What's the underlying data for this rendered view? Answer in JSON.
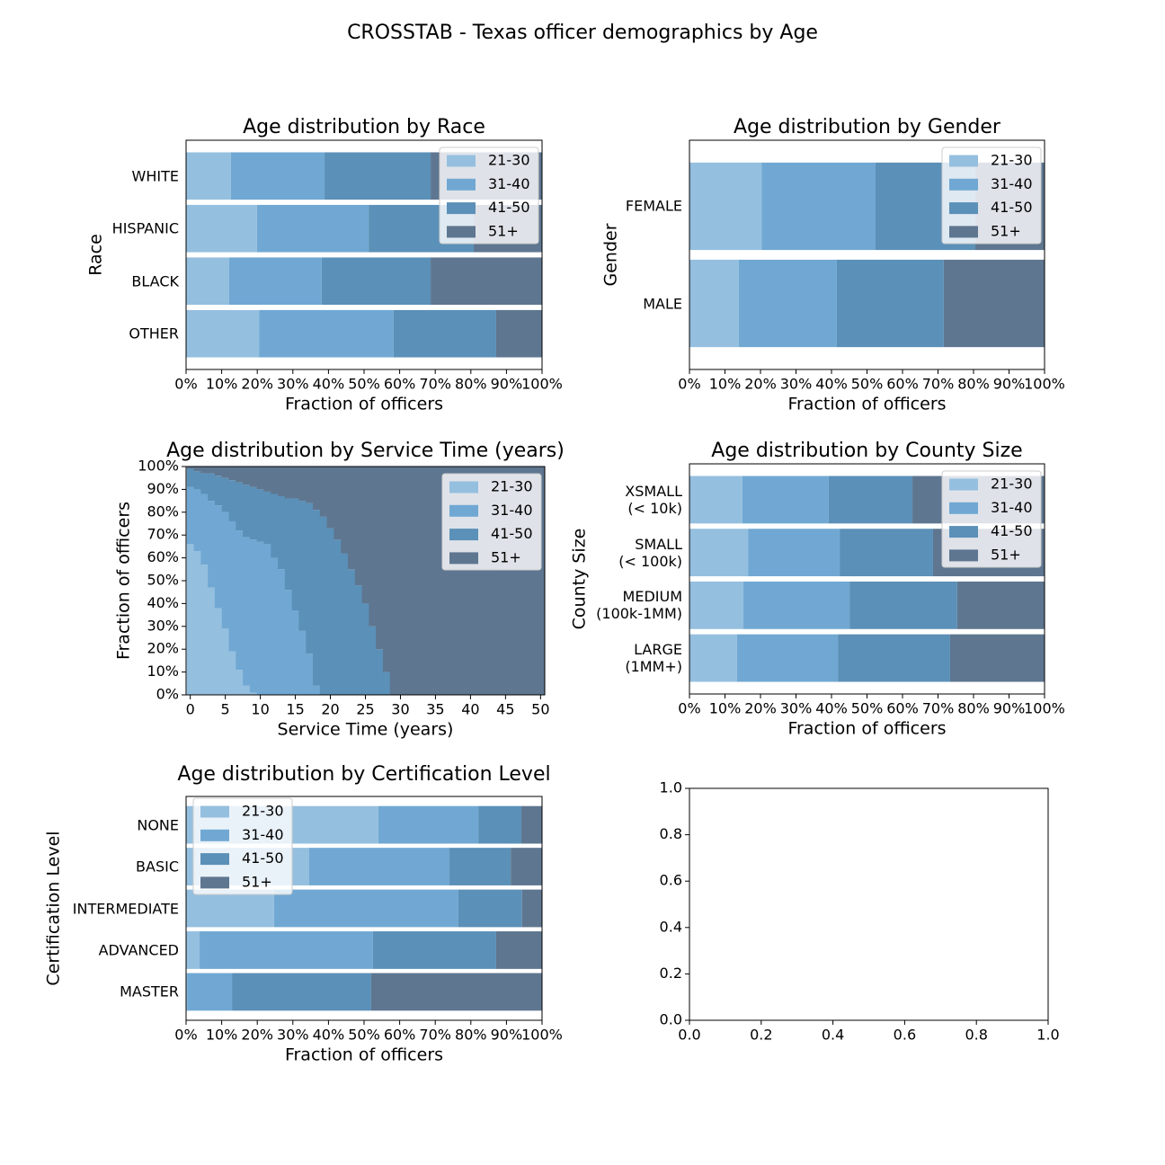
{
  "title": "CROSSTAB - Texas officer demographics by Age",
  "chart_data": [
    {
      "type": "bar",
      "orientation": "horizontal",
      "stacked": true,
      "title": "Age distribution by Race",
      "xlabel": "Fraction of officers",
      "ylabel": "Race",
      "categories": [
        "WHITE",
        "HISPANIC",
        "BLACK",
        "OTHER"
      ],
      "series": [
        {
          "name": "21-30",
          "color": "#95bfdf",
          "values": [
            12.6,
            19.9,
            12.1,
            20.5
          ]
        },
        {
          "name": "31-40",
          "color": "#70a8d3",
          "values": [
            26.3,
            31.4,
            26.0,
            37.8
          ]
        },
        {
          "name": "41-50",
          "color": "#5b90b8",
          "values": [
            29.8,
            29.5,
            30.6,
            28.8
          ]
        },
        {
          "name": "51+",
          "color": "#5e7690",
          "values": [
            31.3,
            19.2,
            31.3,
            12.9
          ]
        }
      ],
      "xlim": [
        0,
        100
      ],
      "xticks": [
        {
          "value": 0,
          "label": "0%"
        },
        {
          "value": 10,
          "label": "10%"
        },
        {
          "value": 20,
          "label": "20%"
        },
        {
          "value": 30,
          "label": "30%"
        },
        {
          "value": 40,
          "label": "40%"
        },
        {
          "value": 50,
          "label": "50%"
        },
        {
          "value": 60,
          "label": "60%"
        },
        {
          "value": 70,
          "label": "70%"
        },
        {
          "value": 80,
          "label": "80%"
        },
        {
          "value": 90,
          "label": "90%"
        },
        {
          "value": 100,
          "label": "100%"
        }
      ],
      "legend": "upper right"
    },
    {
      "type": "bar",
      "orientation": "horizontal",
      "stacked": true,
      "title": "Age distribution by Gender",
      "xlabel": "Fraction of officers",
      "ylabel": "Gender",
      "categories": [
        "FEMALE",
        "MALE"
      ],
      "series": [
        {
          "name": "21-30",
          "color": "#95bfdf",
          "values": [
            20.3,
            13.9
          ]
        },
        {
          "name": "31-40",
          "color": "#70a8d3",
          "values": [
            32.1,
            27.6
          ]
        },
        {
          "name": "41-50",
          "color": "#5b90b8",
          "values": [
            28.1,
            30.1
          ]
        },
        {
          "name": "51+",
          "color": "#5e7690",
          "values": [
            19.5,
            28.4
          ]
        }
      ],
      "xlim": [
        0,
        100
      ],
      "xticks": [
        {
          "value": 0,
          "label": "0%"
        },
        {
          "value": 10,
          "label": "10%"
        },
        {
          "value": 20,
          "label": "20%"
        },
        {
          "value": 30,
          "label": "30%"
        },
        {
          "value": 40,
          "label": "40%"
        },
        {
          "value": 50,
          "label": "50%"
        },
        {
          "value": 60,
          "label": "60%"
        },
        {
          "value": 70,
          "label": "70%"
        },
        {
          "value": 80,
          "label": "80%"
        },
        {
          "value": 90,
          "label": "90%"
        },
        {
          "value": 100,
          "label": "100%"
        }
      ],
      "legend": "upper right"
    },
    {
      "type": "area",
      "stacked": true,
      "title": "Age distribution by Service Time (years)",
      "xlabel": "Service Time (years)",
      "ylabel": "Fraction of officers",
      "x": [
        0,
        1,
        2,
        3,
        4,
        5,
        6,
        7,
        8,
        9,
        10,
        11,
        12,
        13,
        14,
        15,
        16,
        17,
        18,
        19,
        20,
        21,
        22,
        23,
        24,
        25,
        26,
        27,
        28,
        29,
        30,
        31,
        32,
        33,
        34,
        35,
        36,
        37,
        38,
        39,
        40,
        41,
        42,
        43,
        44,
        45,
        46,
        47,
        48,
        49,
        50
      ],
      "series": [
        {
          "name": "21-30",
          "color": "#95bfdf",
          "values": [
            66,
            63,
            57,
            47,
            38,
            29,
            19,
            11,
            4,
            1,
            0,
            0,
            0,
            0,
            0,
            0,
            0,
            0,
            0,
            0,
            0,
            0,
            0,
            0,
            0,
            0,
            0,
            0,
            0,
            0,
            0,
            0,
            0,
            0,
            0,
            0,
            0,
            0,
            0,
            0,
            0,
            0,
            0,
            0,
            0,
            0,
            0,
            0,
            0,
            0,
            0
          ]
        },
        {
          "name": "31-40",
          "color": "#70a8d3",
          "values": [
            25,
            27,
            31,
            38,
            45,
            51,
            57,
            61,
            65,
            67,
            67,
            66,
            60,
            55,
            46,
            37,
            28,
            18,
            4,
            0,
            0,
            0,
            0,
            0,
            0,
            0,
            0,
            0,
            0,
            0,
            0,
            0,
            0,
            0,
            0,
            0,
            0,
            0,
            0,
            0,
            0,
            0,
            0,
            0,
            0,
            0,
            0,
            0,
            0,
            0,
            0
          ]
        },
        {
          "name": "41-50",
          "color": "#5b90b8",
          "values": [
            8,
            8,
            9,
            12,
            13,
            15,
            18,
            21,
            23,
            23,
            23,
            23,
            28,
            32,
            40,
            49,
            57,
            66,
            77,
            78,
            73,
            68,
            62,
            55,
            48,
            40,
            30,
            20,
            10,
            0,
            0,
            0,
            0,
            0,
            0,
            0,
            0,
            0,
            0,
            0,
            0,
            0,
            0,
            0,
            0,
            0,
            0,
            0,
            0,
            0,
            0
          ]
        },
        {
          "name": "51+",
          "color": "#5e7690",
          "values": [
            1,
            2,
            3,
            3,
            4,
            5,
            6,
            7,
            8,
            9,
            10,
            11,
            12,
            13,
            14,
            14,
            15,
            16,
            19,
            22,
            27,
            32,
            38,
            45,
            52,
            60,
            70,
            80,
            90,
            100,
            100,
            100,
            100,
            100,
            100,
            100,
            100,
            100,
            100,
            100,
            100,
            100,
            100,
            100,
            100,
            100,
            100,
            100,
            100,
            100,
            100
          ]
        }
      ],
      "xlim": [
        -0.6,
        50.6
      ],
      "xticks": [
        0,
        5,
        10,
        15,
        20,
        25,
        30,
        35,
        40,
        45,
        50
      ],
      "ylim": [
        0,
        100
      ],
      "yticks": [
        {
          "value": 0,
          "label": "0%"
        },
        {
          "value": 10,
          "label": "10%"
        },
        {
          "value": 20,
          "label": "20%"
        },
        {
          "value": 30,
          "label": "30%"
        },
        {
          "value": 40,
          "label": "40%"
        },
        {
          "value": 50,
          "label": "50%"
        },
        {
          "value": 60,
          "label": "60%"
        },
        {
          "value": 70,
          "label": "70%"
        },
        {
          "value": 80,
          "label": "80%"
        },
        {
          "value": 90,
          "label": "90%"
        },
        {
          "value": 100,
          "label": "100%"
        }
      ],
      "legend": "upper right"
    },
    {
      "type": "bar",
      "orientation": "horizontal",
      "stacked": true,
      "title": "Age distribution by County Size",
      "xlabel": "Fraction of officers",
      "ylabel": "County Size",
      "categories": [
        "XSMALL\n(< 10k)",
        "SMALL\n(< 100k)",
        "MEDIUM\n(100k-1MM)",
        "LARGE\n(1MM+)"
      ],
      "series": [
        {
          "name": "21-30",
          "color": "#95bfdf",
          "values": [
            14.9,
            16.5,
            15.2,
            13.4
          ]
        },
        {
          "name": "31-40",
          "color": "#70a8d3",
          "values": [
            24.3,
            25.8,
            29.9,
            28.4
          ]
        },
        {
          "name": "41-50",
          "color": "#5b90b8",
          "values": [
            23.6,
            26.3,
            30.3,
            31.6
          ]
        },
        {
          "name": "51+",
          "color": "#5e7690",
          "values": [
            37.2,
            31.4,
            24.6,
            26.6
          ]
        }
      ],
      "xlim": [
        0,
        100
      ],
      "xticks": [
        {
          "value": 0,
          "label": "0%"
        },
        {
          "value": 10,
          "label": "10%"
        },
        {
          "value": 20,
          "label": "20%"
        },
        {
          "value": 30,
          "label": "30%"
        },
        {
          "value": 40,
          "label": "40%"
        },
        {
          "value": 50,
          "label": "50%"
        },
        {
          "value": 60,
          "label": "60%"
        },
        {
          "value": 70,
          "label": "70%"
        },
        {
          "value": 80,
          "label": "80%"
        },
        {
          "value": 90,
          "label": "90%"
        },
        {
          "value": 100,
          "label": "100%"
        }
      ],
      "legend": "upper right"
    },
    {
      "type": "bar",
      "orientation": "horizontal",
      "stacked": true,
      "title": "Age distribution by Certification Level",
      "xlabel": "Fraction of officers",
      "ylabel": "Certification Level",
      "categories": [
        "NONE",
        "BASIC",
        "INTERMEDIATE",
        "ADVANCED",
        "MASTER"
      ],
      "series": [
        {
          "name": "21-30",
          "color": "#95bfdf",
          "values": [
            54.0,
            34.6,
            24.7,
            3.8,
            0.3
          ]
        },
        {
          "name": "31-40",
          "color": "#70a8d3",
          "values": [
            28.1,
            39.4,
            51.8,
            48.7,
            12.6
          ]
        },
        {
          "name": "41-50",
          "color": "#5b90b8",
          "values": [
            12.1,
            17.2,
            17.9,
            34.6,
            39.1
          ]
        },
        {
          "name": "51+",
          "color": "#5e7690",
          "values": [
            5.8,
            8.8,
            5.6,
            12.9,
            48.0
          ]
        }
      ],
      "xlim": [
        0,
        100
      ],
      "xticks": [
        {
          "value": 0,
          "label": "0%"
        },
        {
          "value": 10,
          "label": "10%"
        },
        {
          "value": 20,
          "label": "20%"
        },
        {
          "value": 30,
          "label": "30%"
        },
        {
          "value": 40,
          "label": "40%"
        },
        {
          "value": 50,
          "label": "50%"
        },
        {
          "value": 60,
          "label": "60%"
        },
        {
          "value": 70,
          "label": "70%"
        },
        {
          "value": 80,
          "label": "80%"
        },
        {
          "value": 90,
          "label": "90%"
        },
        {
          "value": 100,
          "label": "100%"
        }
      ],
      "legend": "upper left"
    },
    {
      "type": "line",
      "xlim": [
        0,
        1
      ],
      "xticks": [
        {
          "value": 0,
          "label": "0.0"
        },
        0.2,
        0.4,
        0.6,
        0.8,
        {
          "value": 1,
          "label": "1.0"
        }
      ],
      "ylim": [
        0,
        1
      ],
      "yticks": [
        {
          "value": 0,
          "label": "0.0"
        },
        0.2,
        0.4,
        0.6,
        0.8,
        {
          "value": 1,
          "label": "1.0"
        }
      ]
    }
  ]
}
